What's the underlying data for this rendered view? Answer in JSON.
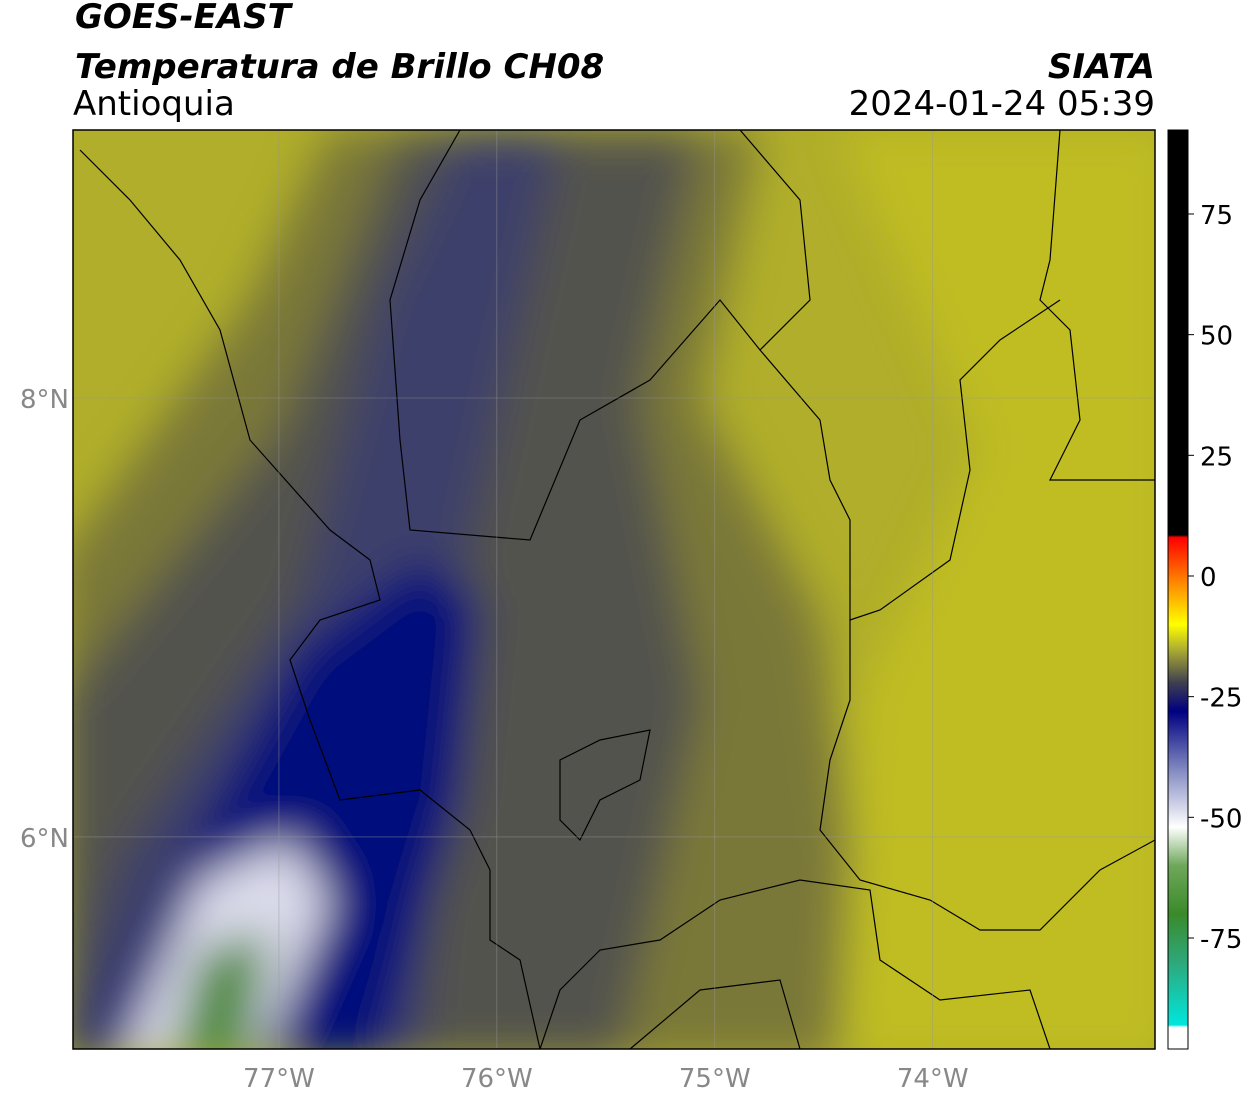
{
  "header": {
    "title": "GOES-EAST",
    "subtitle": "Temperatura de Brillo CH08",
    "region": "Antioquia",
    "source": "SIATA",
    "datetime": "2024-01-24 05:39"
  },
  "map": {
    "xlim": [
      -77.945,
      -72.98
    ],
    "ylim": [
      5.034,
      9.221
    ],
    "xticks": [
      {
        "value": -77,
        "label": "77°W"
      },
      {
        "value": -76,
        "label": "76°W"
      },
      {
        "value": -75,
        "label": "75°W"
      },
      {
        "value": -74,
        "label": "74°W"
      }
    ],
    "yticks": [
      {
        "value": 8,
        "label": "8°N"
      },
      {
        "value": 6,
        "label": "6°N"
      }
    ],
    "grid": true
  },
  "colorbar": {
    "lim": [
      -98,
      92.4
    ],
    "ticks": [
      75,
      50,
      25,
      0,
      -25,
      -50,
      -75
    ],
    "colormap": [
      {
        "value": -98,
        "color": "#ffffff"
      },
      {
        "value": -93.5,
        "color": "#ffffff"
      },
      {
        "value": -93,
        "color": "#00e6dc"
      },
      {
        "value": -80,
        "color": "#2ea87a"
      },
      {
        "value": -70,
        "color": "#3a8a2a"
      },
      {
        "value": -60,
        "color": "#6ea85a"
      },
      {
        "value": -52,
        "color": "#ffffff"
      },
      {
        "value": -40,
        "color": "#8088c0"
      },
      {
        "value": -28,
        "color": "#000080"
      },
      {
        "value": -22,
        "color": "#404050"
      },
      {
        "value": -15,
        "color": "#b0b030"
      },
      {
        "value": -10,
        "color": "#ffff00"
      },
      {
        "value": -2,
        "color": "#ff9000"
      },
      {
        "value": 8,
        "color": "#ff0000"
      },
      {
        "value": 8.5,
        "color": "#000000"
      },
      {
        "value": 92.4,
        "color": "#000000"
      }
    ]
  }
}
